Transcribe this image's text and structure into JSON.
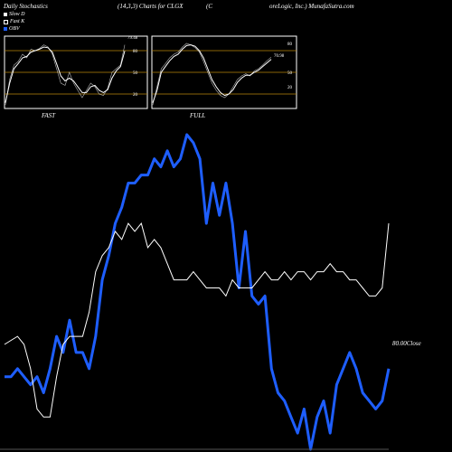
{
  "header": {
    "left": "Daily Stochastics",
    "center": "(14,3,3) Charts for CLGX",
    "right_open": "(C",
    "right": "oreLogic, Inc.) MunafaSutra.com"
  },
  "legend": [
    {
      "label": "Slow  D",
      "color": "#ffffff"
    },
    {
      "label": "Fast K",
      "color": "#000000"
    },
    {
      "label": "OBV",
      "color": "#1e5eff"
    }
  ],
  "panels": {
    "fast": {
      "label": "FAST",
      "last_value": "79.48",
      "ticks": [
        "80",
        "50",
        "20"
      ]
    },
    "full": {
      "label": "FULL",
      "last_value": "70.98",
      "ticks": [
        "80",
        "50",
        "20"
      ]
    }
  },
  "main_label": "80.00Close",
  "colors": {
    "obv": "#1e5eff",
    "slow_d": "#ffffff",
    "grid": "#b8860b"
  },
  "chart_data": {
    "type": "line",
    "x": [
      0,
      1,
      2,
      3,
      4,
      5,
      6,
      7,
      8,
      9,
      10,
      11,
      12,
      13,
      14,
      15,
      16,
      17,
      18,
      19,
      20,
      21,
      22,
      23,
      24,
      25,
      26,
      27,
      28,
      29,
      30,
      31,
      32,
      33,
      34,
      35,
      36,
      37,
      38,
      39,
      40,
      41,
      42,
      43,
      44,
      45,
      46,
      47,
      48,
      49,
      50,
      51,
      52,
      53,
      54,
      55,
      56,
      57,
      58,
      59
    ],
    "series": [
      {
        "name": "OBV",
        "values": [
          290,
          290,
          300,
          290,
          280,
          290,
          270,
          300,
          340,
          320,
          360,
          320,
          320,
          300,
          340,
          410,
          440,
          480,
          500,
          530,
          530,
          540,
          540,
          560,
          550,
          570,
          550,
          560,
          590,
          580,
          560,
          480,
          530,
          490,
          530,
          480,
          400,
          470,
          390,
          380,
          390,
          300,
          270,
          260,
          240,
          220,
          250,
          200,
          240,
          260,
          220,
          280,
          300,
          320,
          300,
          270,
          260,
          250,
          260,
          300
        ]
      },
      {
        "name": "Close",
        "values": [
          330,
          335,
          340,
          330,
          300,
          250,
          240,
          240,
          290,
          330,
          340,
          340,
          340,
          370,
          420,
          440,
          450,
          470,
          460,
          480,
          470,
          480,
          450,
          460,
          450,
          430,
          410,
          410,
          410,
          420,
          410,
          400,
          400,
          400,
          390,
          410,
          400,
          400,
          400,
          410,
          420,
          410,
          410,
          420,
          410,
          420,
          420,
          410,
          420,
          420,
          430,
          420,
          420,
          410,
          410,
          400,
          390,
          390,
          400,
          480
        ]
      }
    ],
    "ylim": [
      200,
      600
    ],
    "last_close": 80.0
  },
  "mini_data": {
    "fast": {
      "k": [
        5,
        40,
        60,
        65,
        75,
        70,
        82,
        80,
        83,
        88,
        85,
        75,
        55,
        35,
        32,
        50,
        35,
        25,
        15,
        25,
        35,
        30,
        20,
        18,
        28,
        50,
        55,
        60,
        88
      ],
      "d": [
        8,
        35,
        55,
        62,
        70,
        72,
        78,
        80,
        82,
        85,
        84,
        78,
        62,
        45,
        38,
        42,
        38,
        30,
        22,
        22,
        30,
        32,
        25,
        22,
        26,
        42,
        52,
        58,
        79.48
      ]
    },
    "full": {
      "k": [
        5,
        30,
        55,
        62,
        70,
        75,
        78,
        85,
        90,
        88,
        84,
        78,
        65,
        50,
        35,
        25,
        18,
        15,
        20,
        30,
        40,
        45,
        48,
        45,
        52,
        55,
        60,
        66,
        70.98
      ],
      "d": [
        8,
        25,
        50,
        58,
        66,
        72,
        75,
        82,
        87,
        88,
        86,
        80,
        70,
        55,
        40,
        30,
        22,
        18,
        20,
        26,
        36,
        42,
        46,
        46,
        50,
        53,
        58,
        63,
        68
      ]
    }
  }
}
